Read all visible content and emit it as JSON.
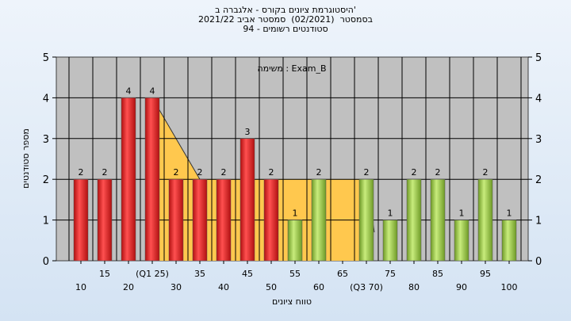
{
  "chart_data": {
    "type": "bar",
    "title_lines": [
      "היסטוגרמת ציונים בקורס - אלגברה ב'",
      "בסמסטר  (02/2021)  סמסטר אביב 2021/22",
      "94 - סטודנטים רשומים"
    ],
    "annotation": "משימה : Exam_B",
    "ylabel": "מספר סטודנטים",
    "xlabel": "טווח ציונים",
    "ylim": [
      0,
      5
    ],
    "yticks": [
      "0",
      "1",
      "2",
      "3",
      "4",
      "5"
    ],
    "categories": [
      10,
      15,
      20,
      25,
      30,
      35,
      40,
      45,
      50,
      55,
      60,
      65,
      70,
      75,
      80,
      85,
      90,
      95,
      100
    ],
    "values": [
      2,
      2,
      4,
      4,
      2,
      2,
      2,
      3,
      2,
      1,
      2,
      0,
      2,
      1,
      2,
      2,
      1,
      2,
      1
    ],
    "bar_colors": [
      "red",
      "red",
      "red",
      "red",
      "red",
      "red",
      "red",
      "red",
      "red",
      "green",
      "green",
      "green",
      "green",
      "green",
      "green",
      "green",
      "green",
      "green",
      "green"
    ],
    "xtick_labels": [
      "10",
      "15",
      "20",
      "(Q1 25)",
      "30",
      "35",
      "40",
      "45",
      "50",
      "55",
      "60",
      "65",
      "(Q3 70)",
      "75",
      "80",
      "85",
      "90",
      "95",
      "100"
    ],
    "quartile_band": {
      "from": 25,
      "to": 70
    },
    "colors": {
      "plot_bg": "#c0c0c0",
      "grid": "#000000",
      "red_bar": "#e22020",
      "green_bar": "#9ccc48",
      "band": "#ffc84e",
      "background": "#dce8f5"
    },
    "grid": true
  }
}
